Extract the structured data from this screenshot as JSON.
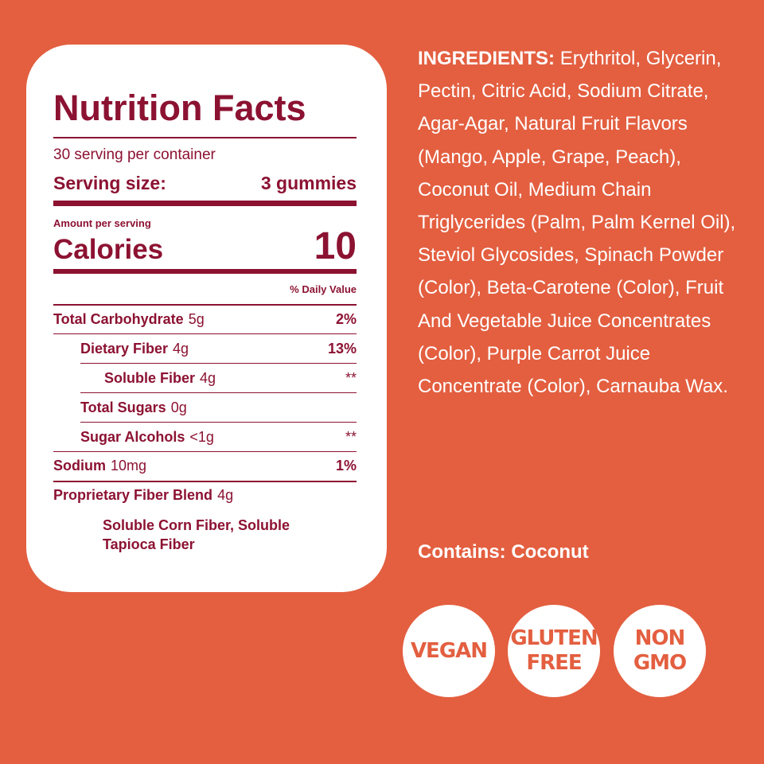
{
  "nutrition": {
    "title": "Nutrition Facts",
    "servings_per_container": "30 serving per container",
    "serving_size_label": "Serving size:",
    "serving_size_value": "3 gummies",
    "amount_per_serving": "Amount per serving",
    "calories_label": "Calories",
    "calories_value": "10",
    "daily_value_header": "% Daily Value",
    "rows": [
      {
        "name": "Total Carbohydrate",
        "amount": "5g",
        "dv": "2%"
      },
      {
        "name": "Dietary Fiber",
        "amount": "4g",
        "dv": "13%"
      },
      {
        "name": "Soluble Fiber",
        "amount": "4g",
        "dv": "**"
      },
      {
        "name": "Total Sugars",
        "amount": "0g",
        "dv": ""
      },
      {
        "name": "Sugar Alcohols",
        "amount": "<1g",
        "dv": "**"
      },
      {
        "name": "Sodium",
        "amount": "10mg",
        "dv": "1%"
      },
      {
        "name": "Proprietary Fiber Blend",
        "amount": "4g",
        "dv": ""
      }
    ],
    "blend_description": "Soluble Corn Fiber, Soluble Tapioca Fiber"
  },
  "ingredients": {
    "label": "INGREDIENTS:",
    "text": "Erythritol, Glycerin, Pectin, Citric Acid, Sodium Citrate, Agar-Agar, Natural Fruit Flavors (Mango, Apple, Grape, Peach), Coconut Oil, Medium Chain Triglycerides (Palm, Palm Kernel Oil), Steviol Glycosides, Spinach Powder (Color), Beta-Carotene (Color), Fruit And Vegetable Juice Concentrates (Color), Purple Carrot Juice Concentrate (Color), Carnauba Wax."
  },
  "contains": "Contains: Coconut",
  "badges": [
    "VEGAN",
    "GLUTEN\nFREE",
    "NON\nGMO"
  ],
  "colors": {
    "background": "#E35F40",
    "panel": "#FFFFFF",
    "label_text": "#8C1232"
  }
}
